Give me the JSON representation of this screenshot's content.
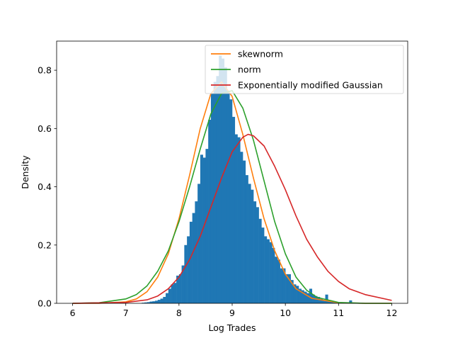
{
  "chart_data": {
    "type": "histogram",
    "title": "",
    "xlabel": "Log Trades",
    "ylabel": "Density",
    "xlim": [
      5.7,
      12.3
    ],
    "ylim": [
      0,
      0.9
    ],
    "xticks": [
      6,
      7,
      8,
      9,
      10,
      11,
      12
    ],
    "yticks": [
      0.0,
      0.2,
      0.4,
      0.6,
      0.8
    ],
    "xtick_labels": [
      "6",
      "7",
      "8",
      "9",
      "10",
      "11",
      "12"
    ],
    "ytick_labels": [
      "0.0",
      "0.2",
      "0.4",
      "0.6",
      "0.8"
    ],
    "grid": false,
    "legend_position": "upper-right",
    "histogram": {
      "color": "#1f77b4",
      "bin_width": 0.05,
      "bins": [
        [
          7.3,
          0.002
        ],
        [
          7.35,
          0.003
        ],
        [
          7.4,
          0.004
        ],
        [
          7.45,
          0.006
        ],
        [
          7.5,
          0.007
        ],
        [
          7.55,
          0.009
        ],
        [
          7.6,
          0.012
        ],
        [
          7.65,
          0.016
        ],
        [
          7.7,
          0.022
        ],
        [
          7.75,
          0.035
        ],
        [
          7.8,
          0.05
        ],
        [
          7.85,
          0.065
        ],
        [
          7.9,
          0.07
        ],
        [
          7.95,
          0.095
        ],
        [
          8.0,
          0.1
        ],
        [
          8.05,
          0.13
        ],
        [
          8.1,
          0.2
        ],
        [
          8.15,
          0.23
        ],
        [
          8.2,
          0.28
        ],
        [
          8.25,
          0.31
        ],
        [
          8.3,
          0.35
        ],
        [
          8.35,
          0.41
        ],
        [
          8.4,
          0.51
        ],
        [
          8.45,
          0.5
        ],
        [
          8.5,
          0.53
        ],
        [
          8.55,
          0.63
        ],
        [
          8.6,
          0.72
        ],
        [
          8.65,
          0.76
        ],
        [
          8.7,
          0.78
        ],
        [
          8.75,
          0.85
        ],
        [
          8.8,
          0.84
        ],
        [
          8.85,
          0.81
        ],
        [
          8.9,
          0.73
        ],
        [
          8.95,
          0.7
        ],
        [
          9.0,
          0.64
        ],
        [
          9.05,
          0.58
        ],
        [
          9.1,
          0.57
        ],
        [
          9.15,
          0.52
        ],
        [
          9.2,
          0.49
        ],
        [
          9.25,
          0.44
        ],
        [
          9.3,
          0.41
        ],
        [
          9.35,
          0.39
        ],
        [
          9.4,
          0.35
        ],
        [
          9.45,
          0.33
        ],
        [
          9.5,
          0.29
        ],
        [
          9.55,
          0.26
        ],
        [
          9.6,
          0.23
        ],
        [
          9.65,
          0.22
        ],
        [
          9.7,
          0.21
        ],
        [
          9.75,
          0.19
        ],
        [
          9.8,
          0.16
        ],
        [
          9.85,
          0.15
        ],
        [
          9.9,
          0.12
        ],
        [
          9.95,
          0.12
        ],
        [
          10.0,
          0.1
        ],
        [
          10.05,
          0.1
        ],
        [
          10.1,
          0.08
        ],
        [
          10.15,
          0.065
        ],
        [
          10.2,
          0.06
        ],
        [
          10.25,
          0.05
        ],
        [
          10.3,
          0.045
        ],
        [
          10.35,
          0.04
        ],
        [
          10.4,
          0.035
        ],
        [
          10.45,
          0.05
        ],
        [
          10.5,
          0.03
        ],
        [
          10.55,
          0.025
        ],
        [
          10.6,
          0.022
        ],
        [
          10.65,
          0.015
        ],
        [
          10.7,
          0.01
        ],
        [
          10.75,
          0.03
        ],
        [
          10.8,
          0.006
        ],
        [
          10.85,
          0.005
        ],
        [
          10.9,
          0.004
        ],
        [
          10.95,
          0.004
        ],
        [
          11.0,
          0.003
        ],
        [
          11.05,
          0.003
        ],
        [
          11.1,
          0.002
        ],
        [
          11.15,
          0.002
        ],
        [
          11.2,
          0.01
        ],
        [
          11.25,
          0.002
        ]
      ]
    },
    "series": [
      {
        "name": "skewnorm",
        "color": "#ff7f0e",
        "x": [
          6.0,
          6.5,
          7.0,
          7.2,
          7.4,
          7.6,
          7.8,
          8.0,
          8.2,
          8.4,
          8.6,
          8.8,
          9.0,
          9.2,
          9.4,
          9.6,
          9.8,
          10.0,
          10.2,
          10.5,
          11.0,
          11.5,
          12.0
        ],
        "y": [
          0.0,
          0.0,
          0.005,
          0.015,
          0.04,
          0.09,
          0.17,
          0.29,
          0.44,
          0.6,
          0.72,
          0.76,
          0.71,
          0.58,
          0.43,
          0.29,
          0.18,
          0.1,
          0.05,
          0.017,
          0.002,
          0.0,
          0.0
        ]
      },
      {
        "name": "norm",
        "color": "#2ca02c",
        "x": [
          6.0,
          6.5,
          7.0,
          7.2,
          7.4,
          7.6,
          7.8,
          8.0,
          8.2,
          8.4,
          8.6,
          8.8,
          9.0,
          9.2,
          9.4,
          9.6,
          9.8,
          10.0,
          10.2,
          10.4,
          10.6,
          11.0,
          11.5,
          12.0
        ],
        "y": [
          0.0,
          0.002,
          0.015,
          0.03,
          0.06,
          0.11,
          0.18,
          0.28,
          0.4,
          0.53,
          0.65,
          0.72,
          0.73,
          0.67,
          0.56,
          0.42,
          0.28,
          0.17,
          0.09,
          0.045,
          0.02,
          0.003,
          0.0,
          0.0
        ]
      },
      {
        "name": "Exponentially modified Gaussian",
        "color": "#d62728",
        "x": [
          6.0,
          7.0,
          7.4,
          7.6,
          7.8,
          8.0,
          8.2,
          8.4,
          8.6,
          8.8,
          9.0,
          9.2,
          9.3,
          9.4,
          9.6,
          9.8,
          10.0,
          10.2,
          10.4,
          10.6,
          10.8,
          11.0,
          11.2,
          11.5,
          12.0
        ],
        "y": [
          0.0,
          0.003,
          0.012,
          0.025,
          0.05,
          0.09,
          0.15,
          0.23,
          0.33,
          0.43,
          0.52,
          0.57,
          0.58,
          0.575,
          0.54,
          0.47,
          0.39,
          0.3,
          0.22,
          0.16,
          0.11,
          0.075,
          0.05,
          0.03,
          0.01
        ]
      }
    ]
  }
}
